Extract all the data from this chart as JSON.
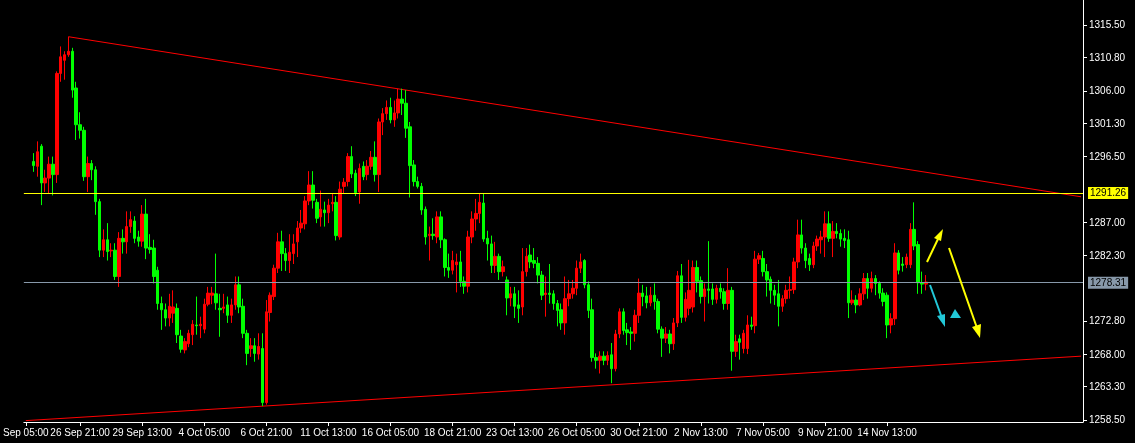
{
  "chart_data": {
    "type": "candlestick",
    "categories": [
      "Sep 05:00",
      null,
      null,
      null,
      null,
      null,
      null,
      null,
      null,
      null,
      null,
      null,
      null,
      null,
      "26 Sep 21:00",
      null,
      null,
      null,
      null,
      null,
      null,
      null,
      null,
      null,
      null,
      null,
      null,
      null,
      null,
      null,
      "29 Sep 13:00",
      null,
      null,
      null,
      null,
      null,
      null,
      null,
      null,
      null,
      null,
      null,
      null,
      null,
      null,
      null,
      "4 Oct 05:00",
      null,
      null,
      null,
      null,
      null,
      null,
      null,
      null,
      null,
      null,
      null,
      null,
      null,
      null,
      null,
      "6 Oct 21:00",
      null,
      null,
      null,
      null,
      null,
      null,
      null,
      null,
      null,
      null,
      null,
      null,
      null,
      null,
      null,
      "11 Oct 13:00",
      null,
      null,
      null,
      null,
      null,
      null,
      null,
      null,
      null,
      null,
      null,
      null,
      null,
      null,
      null,
      "16 Oct 05:00",
      null,
      null,
      null,
      null,
      null,
      null,
      null,
      null,
      null,
      null,
      null,
      null,
      null,
      null,
      null,
      "18 Oct 21:00",
      null,
      null,
      null,
      null,
      null,
      null,
      null,
      null,
      null,
      null,
      null,
      null,
      null,
      null,
      null,
      "23 Oct 13:00",
      null,
      null,
      null,
      null,
      null,
      null,
      null,
      null,
      null,
      null,
      null,
      null,
      null,
      null,
      null,
      "26 Oct 05:00",
      null,
      null,
      null,
      null,
      null,
      null,
      null,
      null,
      null,
      null,
      null,
      null,
      null,
      null,
      null,
      "30 Oct 21:00",
      null,
      null,
      null,
      null,
      null,
      null,
      null,
      null,
      null,
      null,
      null,
      null,
      null,
      null,
      null,
      "2 Nov 13:00",
      null,
      null,
      null,
      null,
      null,
      null,
      null,
      null,
      null,
      null,
      null,
      null,
      null,
      null,
      null,
      "7 Nov 05:00",
      null,
      null,
      null,
      null,
      null,
      null,
      null,
      null,
      null,
      null,
      null,
      null,
      null,
      null,
      null,
      "9 Nov 21:00",
      null,
      null,
      null,
      null,
      null,
      null,
      null,
      null,
      null,
      null,
      null,
      null,
      null,
      null,
      null,
      "14 Nov 13:00",
      null,
      null,
      null,
      null,
      null,
      null,
      null,
      null,
      null,
      null,
      null,
      null,
      null,
      null,
      null,
      null,
      null,
      null,
      null,
      null,
      null,
      null,
      null,
      null,
      null,
      null,
      null,
      null,
      null,
      null,
      null,
      null,
      null,
      null,
      null,
      null,
      null,
      null,
      null,
      null,
      null,
      null,
      null,
      null,
      null,
      null,
      null,
      null,
      null,
      null
    ],
    "ohlc": [
      null,
      null,
      [
        1295.8,
        1297.0,
        1294.3,
        1295.2
      ],
      [
        1295.1,
        1298.7,
        1293.6,
        1297.2
      ],
      [
        1298.0,
        1298.3,
        1289.5,
        1292.7
      ],
      [
        1292.7,
        1294.6,
        1291.4,
        1293.4
      ],
      [
        1293.4,
        1296.5,
        1291.2,
        1295.4
      ],
      [
        1295.4,
        1296.5,
        1290.9,
        1293.9
      ],
      [
        1293.9,
        1308.8,
        1292.7,
        1308.5
      ],
      [
        1308.5,
        1312.4,
        1307.3,
        1310.9
      ],
      [
        1310.4,
        1311.7,
        1307.6,
        1311.2
      ],
      [
        1311.2,
        1313.8,
        1310.9,
        1311.7
      ],
      [
        1311.7,
        1312.2,
        1305.0,
        1306.1
      ],
      [
        1306.4,
        1307.3,
        1298.9,
        1301.1
      ],
      [
        1301.1,
        1302.9,
        1299.1,
        1300.3
      ],
      [
        1300.3,
        1300.8,
        1293.0,
        1293.6
      ],
      [
        1293.6,
        1296.5,
        1291.4,
        1295.5
      ],
      [
        1295.5,
        1296.0,
        1293.1,
        1294.6
      ],
      [
        1294.6,
        1295.1,
        1288.1,
        1290.0
      ],
      [
        1290.0,
        1290.4,
        1282.0,
        1283.0
      ],
      [
        1283.0,
        1286.0,
        1282.0,
        1284.5
      ],
      [
        1284.5,
        1286.9,
        1281.5,
        1282.8
      ],
      [
        1282.9,
        1284.0,
        1282.0,
        1283.0
      ],
      [
        1283.0,
        1284.0,
        1278.7,
        1279.2
      ],
      [
        1279.2,
        1285.6,
        1277.7,
        1284.7
      ],
      [
        1284.7,
        1286.0,
        1282.5,
        1284.2
      ],
      [
        1284.2,
        1288.6,
        1282.5,
        1286.4
      ],
      [
        1286.4,
        1288.6,
        1285.5,
        1287.4
      ],
      [
        1287.2,
        1287.9,
        1284.0,
        1284.7
      ],
      [
        1284.9,
        1285.8,
        1283.5,
        1284.3
      ],
      [
        1284.3,
        1289.5,
        1283.5,
        1288.2
      ],
      [
        1288.2,
        1290.4,
        1281.7,
        1283.3
      ],
      [
        1283.4,
        1285.3,
        1282.5,
        1283.1
      ],
      [
        1283.3,
        1284.5,
        1278.2,
        1279.2
      ],
      [
        1280.1,
        1280.6,
        1274.4,
        1275.3
      ],
      [
        1275.3,
        1276.3,
        1271.5,
        1274.4
      ],
      [
        1274.4,
        1275.3,
        1272.0,
        1273.2
      ],
      [
        1273.2,
        1276.7,
        1272.0,
        1274.9
      ],
      [
        1273.9,
        1277.2,
        1272.5,
        1274.8
      ],
      [
        1274.6,
        1275.3,
        1269.6,
        1270.8
      ],
      [
        1270.6,
        1271.5,
        1268.2,
        1268.7
      ],
      [
        1268.6,
        1270.3,
        1268.1,
        1269.8
      ],
      [
        1269.5,
        1271.5,
        1269.0,
        1271.0
      ],
      [
        1270.8,
        1272.9,
        1269.3,
        1272.3
      ],
      [
        1272.2,
        1276.3,
        1270.8,
        1272.1
      ],
      [
        1272.1,
        1273.4,
        1270.3,
        1272.3
      ],
      [
        1271.6,
        1276.0,
        1271.0,
        1275.2
      ],
      [
        1275.2,
        1277.7,
        1274.9,
        1276.8
      ],
      [
        1276.5,
        1277.7,
        1275.2,
        1276.8
      ],
      [
        1276.7,
        1282.5,
        1274.4,
        1275.4
      ],
      [
        1274.6,
        1276.7,
        1270.5,
        1274.4
      ],
      [
        1274.6,
        1276.7,
        1273.9,
        1274.8
      ],
      [
        1275.1,
        1276.3,
        1272.5,
        1273.6
      ],
      [
        1273.6,
        1276.0,
        1272.5,
        1275.1
      ],
      [
        1275.1,
        1279.2,
        1274.4,
        1278.0
      ],
      [
        1278.0,
        1279.2,
        1273.9,
        1274.8
      ],
      [
        1274.9,
        1276.0,
        1270.3,
        1271.0
      ],
      [
        1271.0,
        1271.5,
        1266.4,
        1268.1
      ],
      [
        1268.8,
        1270.3,
        1267.6,
        1269.2
      ],
      [
        1269.2,
        1270.3,
        1266.9,
        1268.1
      ],
      [
        1268.0,
        1271.0,
        1267.2,
        1269.1
      ],
      [
        1268.8,
        1271.0,
        1260.5,
        1261.0
      ],
      [
        1261.0,
        1275.8,
        1260.7,
        1274.1
      ],
      [
        1274.0,
        1276.9,
        1272.7,
        1276.5
      ],
      [
        1276.3,
        1280.9,
        1275.8,
        1280.4
      ],
      [
        1280.4,
        1285.5,
        1279.7,
        1284.2
      ],
      [
        1284.2,
        1285.8,
        1280.0,
        1282.5
      ],
      [
        1282.5,
        1283.3,
        1280.0,
        1281.5
      ],
      [
        1281.5,
        1285.3,
        1279.7,
        1282.7
      ],
      [
        1282.5,
        1285.3,
        1281.0,
        1283.9
      ],
      [
        1284.2,
        1287.2,
        1282.0,
        1286.2
      ],
      [
        1286.2,
        1288.8,
        1285.5,
        1286.9
      ],
      [
        1286.8,
        1290.8,
        1286.0,
        1290.1
      ],
      [
        1290.1,
        1294.4,
        1289.5,
        1292.4
      ],
      [
        1292.4,
        1294.4,
        1289.0,
        1290.2
      ],
      [
        1289.9,
        1290.4,
        1286.9,
        1287.6
      ],
      [
        1287.8,
        1291.6,
        1286.4,
        1288.9
      ],
      [
        1288.8,
        1290.0,
        1286.4,
        1288.4
      ],
      [
        1288.4,
        1290.4,
        1286.9,
        1289.5
      ],
      [
        1289.7,
        1291.2,
        1288.6,
        1289.9
      ],
      [
        1289.9,
        1290.8,
        1284.4,
        1285.1
      ],
      [
        1284.9,
        1292.9,
        1284.5,
        1291.8
      ],
      [
        1292.2,
        1293.4,
        1291.2,
        1292.8
      ],
      [
        1292.9,
        1297.0,
        1292.2,
        1296.5
      ],
      [
        1296.5,
        1298.0,
        1293.4,
        1294.0
      ],
      [
        1294.1,
        1294.6,
        1290.8,
        1291.3
      ],
      [
        1291.4,
        1295.5,
        1289.7,
        1294.8
      ],
      [
        1295.1,
        1295.8,
        1293.1,
        1293.6
      ],
      [
        1293.9,
        1296.0,
        1293.1,
        1295.1
      ],
      [
        1295.1,
        1297.3,
        1294.6,
        1296.4
      ],
      [
        1296.4,
        1298.7,
        1292.9,
        1293.9
      ],
      [
        1293.9,
        1302.0,
        1291.4,
        1301.5
      ],
      [
        1301.5,
        1303.5,
        1299.6,
        1302.7
      ],
      [
        1302.7,
        1304.6,
        1301.8,
        1303.6
      ],
      [
        1303.6,
        1305.0,
        1301.3,
        1301.8
      ],
      [
        1301.8,
        1304.6,
        1300.8,
        1302.8
      ],
      [
        1302.8,
        1306.3,
        1302.0,
        1304.8
      ],
      [
        1304.8,
        1306.3,
        1302.5,
        1304.2
      ],
      [
        1304.2,
        1306.1,
        1299.2,
        1300.6
      ],
      [
        1300.8,
        1301.5,
        1290.6,
        1295.2
      ],
      [
        1295.3,
        1296.0,
        1292.2,
        1292.9
      ],
      [
        1292.9,
        1293.6,
        1291.9,
        1292.2
      ],
      [
        1292.2,
        1292.7,
        1288.1,
        1288.8
      ],
      [
        1288.9,
        1289.3,
        1283.8,
        1284.9
      ],
      [
        1285.1,
        1286.4,
        1281.5,
        1285.3
      ],
      [
        1285.3,
        1287.6,
        1284.5,
        1285.1
      ],
      [
        1284.9,
        1288.6,
        1284.0,
        1287.8
      ],
      [
        1287.8,
        1288.6,
        1283.3,
        1284.5
      ],
      [
        1284.5,
        1284.7,
        1279.2,
        1280.5
      ],
      [
        1280.5,
        1282.5,
        1279.0,
        1280.1
      ],
      [
        1280.1,
        1282.9,
        1279.5,
        1281.5
      ],
      [
        1280.9,
        1282.5,
        1276.9,
        1281.3
      ],
      [
        1281.3,
        1282.9,
        1277.7,
        1278.5
      ],
      [
        1278.5,
        1279.2,
        1276.7,
        1277.8
      ],
      [
        1277.8,
        1285.8,
        1276.9,
        1284.9
      ],
      [
        1284.9,
        1288.6,
        1284.0,
        1287.5
      ],
      [
        1287.5,
        1290.4,
        1285.8,
        1288.3
      ],
      [
        1288.3,
        1291.2,
        1286.9,
        1289.9
      ],
      [
        1289.8,
        1291.2,
        1284.2,
        1284.6
      ],
      [
        1284.7,
        1285.8,
        1281.5,
        1283.9
      ],
      [
        1283.9,
        1285.1,
        1279.7,
        1280.8
      ],
      [
        1280.8,
        1284.2,
        1279.7,
        1282.1
      ],
      [
        1282.1,
        1282.5,
        1278.7,
        1279.9
      ],
      [
        1279.9,
        1281.5,
        1279.2,
        1280.6
      ],
      [
        1278.7,
        1279.2,
        1273.6,
        1276.1
      ],
      [
        1276.1,
        1277.7,
        1274.9,
        1276.7
      ],
      [
        1276.7,
        1277.7,
        1273.2,
        1274.9
      ],
      [
        1275.1,
        1277.2,
        1272.5,
        1274.6
      ],
      [
        1274.8,
        1283.3,
        1273.6,
        1279.9
      ],
      [
        1279.9,
        1283.3,
        1279.2,
        1282.1
      ],
      [
        1282.3,
        1283.8,
        1280.4,
        1281.3
      ],
      [
        1281.5,
        1283.3,
        1280.4,
        1281.1
      ],
      [
        1281.1,
        1282.0,
        1278.2,
        1279.4
      ],
      [
        1279.4,
        1280.0,
        1275.8,
        1276.5
      ],
      [
        1276.6,
        1279.2,
        1273.4,
        1276.8
      ],
      [
        1276.8,
        1281.0,
        1275.3,
        1276.6
      ],
      [
        1276.7,
        1277.2,
        1274.4,
        1275.3
      ],
      [
        1275.3,
        1275.8,
        1272.0,
        1274.3
      ],
      [
        1274.4,
        1275.3,
        1271.5,
        1272.5
      ],
      [
        1272.5,
        1279.2,
        1270.8,
        1276.0
      ],
      [
        1276.0,
        1278.7,
        1274.9,
        1276.7
      ],
      [
        1276.7,
        1278.7,
        1276.0,
        1277.5
      ],
      [
        1277.5,
        1281.5,
        1276.5,
        1280.4
      ],
      [
        1280.4,
        1282.5,
        1279.7,
        1281.3
      ],
      [
        1281.5,
        1281.7,
        1277.5,
        1278.0
      ],
      [
        1278.0,
        1278.5,
        1273.2,
        1274.3
      ],
      [
        1274.4,
        1276.0,
        1266.9,
        1267.5
      ],
      [
        1267.5,
        1268.1,
        1265.9,
        1267.1
      ],
      [
        1267.1,
        1268.4,
        1265.2,
        1267.7
      ],
      [
        1267.7,
        1268.4,
        1266.4,
        1267.1
      ],
      [
        1267.1,
        1268.4,
        1266.4,
        1267.8
      ],
      [
        1267.9,
        1269.6,
        1263.8,
        1265.9
      ],
      [
        1265.9,
        1271.5,
        1265.5,
        1270.9
      ],
      [
        1270.9,
        1274.6,
        1270.3,
        1274.1
      ],
      [
        1274.1,
        1274.6,
        1270.8,
        1271.4
      ],
      [
        1271.5,
        1272.5,
        1269.3,
        1271.1
      ],
      [
        1271.2,
        1271.9,
        1268.6,
        1271.0
      ],
      [
        1271.0,
        1274.4,
        1269.8,
        1273.6
      ],
      [
        1273.6,
        1278.9,
        1272.5,
        1276.8
      ],
      [
        1276.8,
        1278.0,
        1274.9,
        1276.3
      ],
      [
        1276.4,
        1277.7,
        1274.6,
        1275.4
      ],
      [
        1275.4,
        1277.7,
        1274.9,
        1276.5
      ],
      [
        1276.5,
        1278.2,
        1274.4,
        1275.6
      ],
      [
        1275.6,
        1276.0,
        1271.0,
        1271.6
      ],
      [
        1271.6,
        1272.0,
        1267.6,
        1270.3
      ],
      [
        1270.3,
        1271.9,
        1269.6,
        1270.9
      ],
      [
        1270.9,
        1271.5,
        1268.1,
        1269.5
      ],
      [
        1269.5,
        1273.2,
        1268.6,
        1272.5
      ],
      [
        1272.5,
        1280.0,
        1271.9,
        1279.3
      ],
      [
        1279.3,
        1281.0,
        1272.5,
        1273.3
      ],
      [
        1273.3,
        1276.9,
        1272.7,
        1275.9
      ],
      [
        1274.6,
        1281.6,
        1273.6,
        1277.2
      ],
      [
        1274.8,
        1281.5,
        1274.0,
        1280.5
      ],
      [
        1280.5,
        1281.5,
        1276.9,
        1278.5
      ],
      [
        1278.6,
        1279.2,
        1275.3,
        1276.3
      ],
      [
        1276.3,
        1278.2,
        1272.7,
        1277.4
      ],
      [
        1277.4,
        1284.3,
        1275.3,
        1277.2
      ],
      [
        1277.4,
        1278.2,
        1275.1,
        1275.9
      ],
      [
        1275.9,
        1278.0,
        1275.3,
        1277.5
      ],
      [
        1277.5,
        1278.2,
        1276.0,
        1277.0
      ],
      [
        1277.0,
        1277.5,
        1274.4,
        1275.3
      ],
      [
        1275.3,
        1280.4,
        1274.4,
        1277.2
      ],
      [
        1277.2,
        1277.7,
        1265.6,
        1268.4
      ],
      [
        1268.4,
        1270.8,
        1267.6,
        1269.8
      ],
      [
        1270.2,
        1270.8,
        1267.2,
        1269.7
      ],
      [
        1268.8,
        1271.5,
        1268.1,
        1271.0
      ],
      [
        1268.8,
        1273.6,
        1268.0,
        1272.2
      ],
      [
        1272.2,
        1273.4,
        1271.5,
        1272.0
      ],
      [
        1272.1,
        1282.9,
        1271.0,
        1281.7
      ],
      [
        1281.7,
        1282.6,
        1281.0,
        1282.2
      ],
      [
        1281.8,
        1282.9,
        1279.2,
        1279.9
      ],
      [
        1279.9,
        1281.0,
        1276.3,
        1278.7
      ],
      [
        1278.8,
        1279.2,
        1275.3,
        1277.2
      ],
      [
        1277.2,
        1278.0,
        1275.1,
        1276.5
      ],
      [
        1276.7,
        1278.7,
        1272.0,
        1274.9
      ],
      [
        1274.9,
        1276.5,
        1274.1,
        1276.0
      ],
      [
        1276.0,
        1278.0,
        1275.3,
        1277.2
      ],
      [
        1277.2,
        1279.2,
        1276.0,
        1277.3
      ],
      [
        1277.3,
        1281.9,
        1276.7,
        1281.3
      ],
      [
        1281.3,
        1287.4,
        1280.4,
        1285.2
      ],
      [
        1285.2,
        1287.4,
        1282.5,
        1283.3
      ],
      [
        1283.3,
        1284.0,
        1280.4,
        1281.5
      ],
      [
        1281.8,
        1282.5,
        1280.0,
        1280.9
      ],
      [
        1280.9,
        1284.2,
        1280.4,
        1283.6
      ],
      [
        1283.6,
        1285.1,
        1282.9,
        1284.6
      ],
      [
        1284.5,
        1285.8,
        1282.5,
        1284.9
      ],
      [
        1284.9,
        1288.6,
        1282.0,
        1286.8
      ],
      [
        1286.8,
        1288.6,
        1284.2,
        1284.7
      ],
      [
        1284.7,
        1287.2,
        1282.0,
        1285.7
      ],
      [
        1285.7,
        1286.9,
        1284.7,
        1285.4
      ],
      [
        1285.4,
        1286.0,
        1283.5,
        1284.6
      ],
      [
        1284.7,
        1286.0,
        1283.3,
        1284.4
      ],
      [
        1284.5,
        1285.8,
        1273.2,
        1275.4
      ],
      [
        1275.4,
        1277.2,
        1275.1,
        1275.8
      ],
      [
        1275.8,
        1276.5,
        1273.9,
        1275.1
      ],
      [
        1275.1,
        1277.5,
        1274.9,
        1276.7
      ],
      [
        1276.7,
        1279.7,
        1275.8,
        1278.9
      ],
      [
        1278.9,
        1279.7,
        1276.0,
        1277.5
      ],
      [
        1277.5,
        1279.9,
        1276.9,
        1278.9
      ],
      [
        1278.9,
        1279.4,
        1276.5,
        1278.2
      ],
      [
        1278.2,
        1278.5,
        1276.0,
        1276.8
      ],
      [
        1276.8,
        1277.5,
        1274.9,
        1275.6
      ],
      [
        1276.5,
        1276.9,
        1270.3,
        1272.2
      ],
      [
        1272.2,
        1273.9,
        1271.0,
        1273.1
      ],
      [
        1273.1,
        1284.0,
        1272.2,
        1282.6
      ],
      [
        1282.6,
        1283.0,
        1279.5,
        1280.1
      ],
      [
        1281.0,
        1282.0,
        1279.9,
        1280.8
      ],
      [
        1280.9,
        1282.5,
        1280.4,
        1282.0
      ],
      [
        1280.9,
        1286.9,
        1280.4,
        1286.0
      ],
      [
        1286.0,
        1289.9,
        1283.0,
        1283.6
      ],
      [
        1283.8,
        1284.3,
        1276.7,
        1278.3
      ],
      [
        1278.3,
        1279.9,
        1276.7,
        1278.1
      ],
      [
        1278.1,
        1279.4,
        1277.2,
        1278.4
      ],
      null,
      null,
      null,
      null,
      null,
      null,
      null,
      null,
      null,
      null,
      null,
      null,
      null,
      null,
      null,
      null,
      null,
      null,
      null,
      null,
      null,
      null,
      null,
      null,
      null,
      null,
      null,
      null,
      null,
      null,
      null,
      null,
      null,
      null,
      null,
      null,
      null,
      null,
      null,
      null
    ],
    "colors": [
      null,
      null,
      "#00ff00",
      "#ff0000",
      "#00ff00",
      "#ff0000",
      "#ff0000",
      "#00ff00",
      "#ff0000",
      "#ff0000",
      "#ff0000",
      "#ff0000",
      "#00ff00",
      "#00ff00",
      "#00ff00",
      "#00ff00",
      "#ff0000",
      "#00ff00",
      "#00ff00",
      "#00ff00",
      "#ff0000",
      "#00ff00",
      "#ff0000",
      "#00ff00",
      "#ff0000",
      "#00ff00",
      "#ff0000",
      "#ff0000",
      "#00ff00",
      "#00ff00",
      "#ff0000",
      "#00ff00",
      "#00ff00",
      "#00ff00",
      "#00ff00",
      "#00ff00",
      "#00ff00",
      "#ff0000",
      "#ff0000",
      "#00ff00",
      "#00ff00",
      "#ff0000",
      "#ff0000",
      "#ff0000",
      "#00ff00",
      "#ff0000",
      "#ff0000",
      "#ff0000",
      "#ff0000",
      "#00ff00",
      "#00ff00",
      "#ff0000",
      "#00ff00",
      "#ff0000",
      "#ff0000",
      "#00ff00",
      "#00ff00",
      "#00ff00",
      "#ff0000",
      "#00ff00",
      "#ff0000",
      "#00ff00",
      "#ff0000",
      "#ff0000",
      "#ff0000",
      "#ff0000",
      "#00ff00",
      "#00ff00",
      "#ff0000",
      "#ff0000",
      "#ff0000",
      "#ff0000",
      "#ff0000",
      "#ff0000",
      "#00ff00",
      "#00ff00",
      "#ff0000",
      "#00ff00",
      "#ff0000",
      "#ff0000",
      "#00ff00",
      "#ff0000",
      "#ff0000",
      "#ff0000",
      "#00ff00",
      "#00ff00",
      "#ff0000",
      "#00ff00",
      "#ff0000",
      "#ff0000",
      "#00ff00",
      "#ff0000",
      "#ff0000",
      "#ff0000",
      "#00ff00",
      "#ff0000",
      "#ff0000",
      "#00ff00",
      "#00ff00",
      "#00ff00",
      "#00ff00",
      "#00ff00",
      "#00ff00",
      "#00ff00",
      "#ff0000",
      "#00ff00",
      "#ff0000",
      "#00ff00",
      "#00ff00",
      "#00ff00",
      "#ff0000",
      "#ff0000",
      "#00ff00",
      "#00ff00",
      "#ff0000",
      "#ff0000",
      "#ff0000",
      "#ff0000",
      "#00ff00",
      "#00ff00",
      "#00ff00",
      "#ff0000",
      "#00ff00",
      "#ff0000",
      "#00ff00",
      "#ff0000",
      "#00ff00",
      "#00ff00",
      "#ff0000",
      "#ff0000",
      "#00ff00",
      "#00ff00",
      "#00ff00",
      "#00ff00",
      "#ff0000",
      "#00ff00",
      "#00ff00",
      "#00ff00",
      "#00ff00",
      "#ff0000",
      "#ff0000",
      "#ff0000",
      "#ff0000",
      "#ff0000",
      "#00ff00",
      "#00ff00",
      "#00ff00",
      "#00ff00",
      "#ff0000",
      "#00ff00",
      "#ff0000",
      "#00ff00",
      "#ff0000",
      "#ff0000",
      "#00ff00",
      "#00ff00",
      "#00ff00",
      "#ff0000",
      "#ff0000",
      "#00ff00",
      "#00ff00",
      "#ff0000",
      "#00ff00",
      "#00ff00",
      "#00ff00",
      "#ff0000",
      "#00ff00",
      "#ff0000",
      "#ff0000",
      "#00ff00",
      "#ff0000",
      "#ff0000",
      "#ff0000",
      "#00ff00",
      "#00ff00",
      "#ff0000",
      "#00ff00",
      "#00ff00",
      "#ff0000",
      "#00ff00",
      "#00ff00",
      "#ff0000",
      "#00ff00",
      "#ff0000",
      "#00ff00",
      "#ff0000",
      "#ff0000",
      "#00ff00",
      "#ff0000",
      "#ff0000",
      "#00ff00",
      "#00ff00",
      "#00ff00",
      "#00ff00",
      "#00ff00",
      "#ff0000",
      "#ff0000",
      "#ff0000",
      "#ff0000",
      "#ff0000",
      "#00ff00",
      "#00ff00",
      "#00ff00",
      "#ff0000",
      "#ff0000",
      "#ff0000",
      "#ff0000",
      "#00ff00",
      "#ff0000",
      "#00ff00",
      "#00ff00",
      "#00ff00",
      "#00ff00",
      "#ff0000",
      "#00ff00",
      "#ff0000",
      "#ff0000",
      "#00ff00",
      "#ff0000",
      "#00ff00",
      "#00ff00",
      "#00ff00",
      "#00ff00",
      "#ff0000",
      "#ff0000",
      "#00ff00",
      "#00ff00",
      "#ff0000",
      "#ff0000",
      "#00ff00",
      "#00ff00",
      "#00ff00",
      "#ff0000",
      null,
      null,
      null,
      null,
      null,
      null,
      null,
      null,
      null,
      null,
      null,
      null,
      null,
      null,
      null,
      null,
      null,
      null,
      null,
      null,
      null,
      null,
      null,
      null,
      null,
      null,
      null,
      null,
      null,
      null,
      null,
      null,
      null,
      null,
      null,
      null,
      null,
      null,
      null,
      null
    ],
    "series": [
      {
        "type": "line",
        "color": "#ff0000",
        "values": [
          null,
          null,
          null,
          null,
          null,
          null,
          null,
          null,
          null,
          null,
          null,
          1313.8,
          null,
          null,
          null,
          null,
          null,
          null,
          null,
          null,
          null,
          null,
          null,
          null,
          null,
          null,
          null,
          null,
          null,
          null,
          null,
          null,
          null,
          null,
          null,
          null,
          null,
          null,
          null,
          null,
          null,
          null,
          null,
          null,
          null,
          null,
          null,
          null,
          null,
          null,
          null,
          null,
          null,
          null,
          null,
          null,
          null,
          null,
          null,
          null,
          null,
          null,
          null,
          null,
          null,
          null,
          null,
          null,
          null,
          null,
          null,
          null,
          null,
          null,
          null,
          null,
          null,
          null,
          null,
          null,
          null,
          null,
          null,
          null,
          null,
          null,
          null,
          null,
          null,
          null,
          null,
          null,
          null,
          null,
          null,
          null,
          null,
          null,
          null,
          null,
          null,
          null,
          null,
          null,
          null,
          null,
          null,
          null,
          null,
          null,
          null,
          null,
          null,
          null,
          null,
          null,
          null,
          null,
          null,
          null,
          null,
          null,
          null,
          null,
          null,
          null,
          null,
          null,
          null,
          null,
          null,
          null,
          null,
          null,
          null,
          null,
          null,
          null,
          null,
          null,
          null,
          null,
          null,
          null,
          null,
          null,
          null,
          null,
          null,
          null,
          null,
          null,
          null,
          null,
          null,
          null,
          null,
          null,
          null,
          null,
          null,
          null,
          null,
          null,
          null,
          null,
          null,
          null,
          null,
          null,
          null,
          null,
          null,
          null,
          null,
          null,
          null,
          null,
          null,
          null,
          null,
          null,
          null,
          null,
          null,
          null,
          null,
          null,
          null,
          null,
          null,
          null,
          null,
          null,
          null,
          null,
          null,
          null,
          null,
          null,
          null,
          null,
          null,
          null,
          null,
          null,
          null,
          null,
          null,
          null,
          null,
          null,
          null,
          null,
          null,
          null,
          null,
          null,
          null,
          null,
          null,
          null,
          null,
          null,
          null,
          null,
          null,
          null,
          null,
          null,
          null,
          null,
          null,
          null,
          null,
          null,
          null,
          null,
          null,
          null,
          null,
          null,
          null,
          null,
          null,
          null,
          null,
          null,
          null,
          null,
          null,
          null,
          null,
          null,
          null,
          null,
          null,
          null,
          null,
          null,
          null,
          null,
          null,
          null,
          null,
          null,
          null,
          null,
          null,
          null,
          null,
          null,
          1290.7
        ]
      },
      {
        "type": "line",
        "color": "#ff0000",
        "values": [
          1258.4,
          null,
          null,
          null,
          null,
          null,
          null,
          null,
          null,
          null,
          null,
          null,
          null,
          null,
          null,
          null,
          null,
          null,
          null,
          null,
          null,
          null,
          null,
          null,
          null,
          null,
          null,
          null,
          null,
          null,
          null,
          null,
          null,
          null,
          null,
          null,
          null,
          null,
          null,
          null,
          null,
          null,
          null,
          null,
          null,
          null,
          null,
          null,
          null,
          null,
          null,
          null,
          null,
          null,
          null,
          null,
          null,
          null,
          null,
          null,
          null,
          null,
          null,
          null,
          null,
          null,
          null,
          null,
          null,
          null,
          null,
          null,
          null,
          null,
          null,
          null,
          null,
          null,
          null,
          null,
          null,
          null,
          null,
          null,
          null,
          null,
          null,
          null,
          null,
          null,
          null,
          null,
          null,
          null,
          null,
          null,
          null,
          null,
          null,
          null,
          null,
          null,
          null,
          null,
          null,
          null,
          null,
          null,
          null,
          null,
          null,
          null,
          null,
          null,
          null,
          null,
          null,
          null,
          null,
          null,
          null,
          null,
          null,
          null,
          null,
          null,
          null,
          null,
          null,
          null,
          null,
          null,
          null,
          null,
          null,
          null,
          null,
          null,
          null,
          null,
          null,
          null,
          null,
          null,
          null,
          null,
          null,
          null,
          null,
          null,
          null,
          null,
          null,
          null,
          null,
          null,
          null,
          null,
          null,
          null,
          null,
          null,
          null,
          null,
          null,
          null,
          null,
          null,
          null,
          null,
          null,
          null,
          null,
          null,
          null,
          null,
          null,
          null,
          null,
          null,
          null,
          null,
          null,
          null,
          null,
          null,
          null,
          null,
          null,
          null,
          null,
          null,
          null,
          null,
          null,
          null,
          null,
          null,
          null,
          null,
          null,
          null,
          null,
          null,
          null,
          null,
          null,
          null,
          null,
          null,
          null,
          null,
          null,
          null,
          null,
          null,
          null,
          null,
          null,
          null,
          null,
          null,
          null,
          null,
          null,
          null,
          null,
          null,
          null,
          null,
          null,
          null,
          null,
          null,
          null,
          null,
          null,
          null,
          null,
          null,
          null,
          null,
          null,
          null,
          null,
          null,
          null,
          null,
          null,
          null,
          null,
          null,
          null,
          null,
          null,
          null,
          null,
          null,
          null,
          null,
          null,
          null,
          null,
          null,
          null,
          null,
          null,
          null,
          null,
          null,
          null,
          null,
          1267.7
        ]
      }
    ],
    "ylim": [
      1258.2,
      1319.1
    ],
    "yticks": [
      {
        "value": 1258.5,
        "label": "1258.50"
      },
      {
        "value": 1263.3,
        "label": "1263.30"
      },
      {
        "value": 1268,
        "label": "1268.00"
      },
      {
        "value": 1272.8,
        "label": "1272.80"
      },
      {
        "value": 1282.3,
        "label": "1282.30"
      },
      {
        "value": 1287,
        "label": "1287.00"
      },
      {
        "value": 1296.5,
        "label": "1296.50"
      },
      {
        "value": 1301.3,
        "label": "1301.30"
      },
      {
        "value": 1306,
        "label": "1306.00"
      },
      {
        "value": 1310.8,
        "label": "1310.80"
      },
      {
        "value": 1315.5,
        "label": "1315.50"
      }
    ],
    "ref_lines": [
      {
        "axis": "y",
        "value": 1291.26,
        "label": "1291.26",
        "color": "#ffff00"
      },
      {
        "axis": "y",
        "value": 1278.31,
        "label": "1278.31",
        "color": "#8899aa"
      }
    ]
  }
}
